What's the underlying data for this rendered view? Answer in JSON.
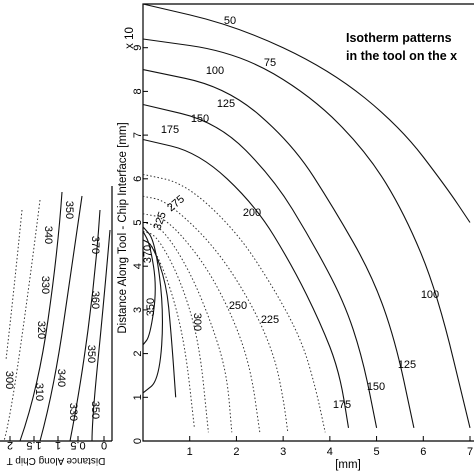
{
  "chart_data": [
    {
      "type": "line",
      "panel": "right",
      "title_lines": [
        "Isotherm patterns",
        "in the tool on the x"
      ],
      "xlabel": "[mm]",
      "ylabel": "Distance Along Tool - Chip Interface [mm]",
      "ylabel_exponent": "x 10",
      "xlim": [
        0,
        7
      ],
      "ylim": [
        0,
        10
      ],
      "x_ticks": [
        1,
        2,
        3,
        4,
        5,
        6,
        7
      ],
      "y_ticks": [
        0,
        1,
        2,
        3,
        4,
        5,
        6,
        7,
        8,
        9
      ],
      "grid": false,
      "series": [
        {
          "name": "50",
          "style": "solid",
          "x": [
            0.0,
            2.0,
            4.0,
            5.5,
            6.5,
            7.0
          ],
          "y": [
            10.0,
            9.5,
            8.5,
            7.2,
            5.8,
            5.0
          ]
        },
        {
          "name": "75",
          "style": "solid",
          "x": [
            0.0,
            2.0,
            3.6,
            4.8,
            5.6,
            6.3,
            7.0
          ],
          "y": [
            9.2,
            8.9,
            7.9,
            6.6,
            5.2,
            3.4,
            0.3
          ]
        },
        {
          "name": "100",
          "style": "solid",
          "x": [
            0.0,
            1.8,
            3.2,
            4.1,
            4.9,
            5.4,
            5.8
          ],
          "y": [
            8.5,
            8.1,
            6.8,
            5.3,
            3.8,
            2.3,
            0.3
          ]
        },
        {
          "name": "125",
          "style": "solid",
          "x": [
            0.0,
            1.6,
            2.8,
            3.6,
            4.3,
            4.7,
            5.0
          ],
          "y": [
            7.7,
            7.3,
            6.0,
            4.6,
            3.2,
            1.9,
            0.3
          ]
        },
        {
          "name": "150",
          "style": "solid",
          "x": [
            0.0,
            1.2,
            2.4,
            3.2,
            3.8,
            4.2,
            4.4
          ],
          "y": [
            6.9,
            6.6,
            5.4,
            4.0,
            2.7,
            1.6,
            0.3
          ]
        },
        {
          "name": "175",
          "style": "dotted",
          "x": [
            0.0,
            0.9,
            2.0,
            2.8,
            3.4,
            3.7,
            3.9
          ],
          "y": [
            6.1,
            5.9,
            4.8,
            3.5,
            2.3,
            1.2,
            0.2
          ]
        },
        {
          "name": "200",
          "style": "dotted",
          "x": [
            0.0,
            0.5,
            1.5,
            2.3,
            2.8,
            3.0,
            3.1
          ],
          "y": [
            5.6,
            5.5,
            4.5,
            3.2,
            2.0,
            1.0,
            0.2
          ]
        },
        {
          "name": "225",
          "style": "dotted",
          "x": [
            0.0,
            0.5,
            1.3,
            1.9,
            2.3,
            2.5
          ],
          "y": [
            5.2,
            5.1,
            4.1,
            2.9,
            1.7,
            0.2
          ]
        },
        {
          "name": "250",
          "style": "dotted",
          "x": [
            0.0,
            0.4,
            1.0,
            1.5,
            1.8,
            1.9
          ],
          "y": [
            5.0,
            4.9,
            3.9,
            2.6,
            1.5,
            0.2
          ]
        },
        {
          "name": "275",
          "style": "dotted",
          "x": [
            0.0,
            0.3,
            0.8,
            1.2,
            1.4
          ],
          "y": [
            4.8,
            4.7,
            3.7,
            2.3,
            0.2
          ]
        },
        {
          "name": "300",
          "style": "dotted",
          "x": [
            0.0,
            0.2,
            0.6,
            0.9,
            1.1
          ],
          "y": [
            4.6,
            4.5,
            3.5,
            2.2,
            0.3
          ]
        },
        {
          "name": "325",
          "style": "solid",
          "x": [
            0.0,
            0.2,
            0.5,
            0.6,
            0.7
          ],
          "y": [
            4.6,
            4.5,
            3.6,
            2.5,
            1.0
          ]
        },
        {
          "name": "350",
          "style": "solid",
          "x": [
            0.0,
            0.25,
            0.45,
            0.35,
            0.0
          ],
          "y": [
            4.9,
            4.6,
            3.0,
            1.4,
            1.1
          ]
        },
        {
          "name": "370",
          "style": "solid",
          "x": [
            0.0,
            0.15,
            0.3,
            0.15,
            0.0
          ],
          "y": [
            4.8,
            4.5,
            3.5,
            2.4,
            2.2
          ]
        }
      ],
      "annotations": [
        "50",
        "75",
        "100",
        "125",
        "150",
        "175",
        "200",
        "275",
        "325",
        "370",
        "350",
        "300",
        "250",
        "225",
        "100",
        "125",
        "150",
        "175"
      ]
    },
    {
      "type": "line",
      "panel": "left",
      "xlabel": "Distance Along Chip T",
      "x_ticks": [
        "0",
        "0.5",
        "1",
        "1.5",
        "2"
      ],
      "contour_labels": [
        "350",
        "340",
        "330",
        "320",
        "310",
        "300",
        "340",
        "350",
        "360",
        "370",
        "350",
        "330"
      ]
    }
  ]
}
